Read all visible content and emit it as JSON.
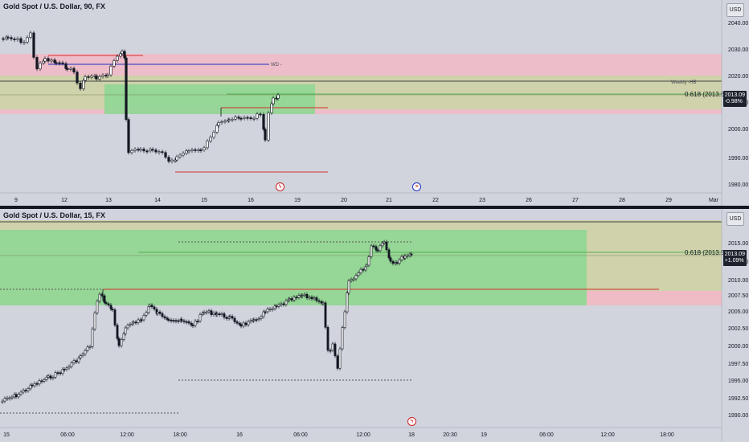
{
  "top_chart": {
    "title": "Gold Spot / U.S. Dollar, 90, FX",
    "currency": "USD",
    "price_badge": [
      "2013.09",
      "-0.98%"
    ],
    "fib_label": "0.618 (2013.52)",
    "weekly_label": "Weekly -HB",
    "wd_label": "WD -",
    "y_ticks": [
      "2040.00",
      "2030.00",
      "2020.00",
      "2010.00",
      "2000.00",
      "1990.00",
      "1980.00"
    ],
    "x_ticks": [
      "9",
      "12",
      "13",
      "14",
      "15",
      "16",
      "19",
      "20",
      "21",
      "22",
      "23",
      "26",
      "27",
      "28",
      "29",
      "Mar"
    ]
  },
  "bottom_chart": {
    "title": "Gold Spot / U.S. Dollar, 15, FX",
    "currency": "USD",
    "price_badge": [
      "2013.09",
      "+1.09%"
    ],
    "fib_label": "0.618 (2013.52)",
    "y_ticks": [
      "2015.00",
      "2012.50",
      "2010.00",
      "2007.50",
      "2005.00",
      "2002.50",
      "2000.00",
      "1997.50",
      "1995.00",
      "1992.50",
      "1990.00"
    ],
    "x_ticks": [
      "15",
      "06:00",
      "12:00",
      "18:00",
      "16",
      "06:00",
      "12:00",
      "18",
      "20:30",
      "19",
      "06:00",
      "12:00",
      "18:00"
    ]
  },
  "colors": {
    "background": "#d1d4dc",
    "bull_candle": "#ffffff",
    "bear_candle": "#131722",
    "supply_zone": "#f2b8c6",
    "demand_zone": "#8fd694",
    "premium_zone": "#cdd29a",
    "red_line": "#d32f2f",
    "blue_line": "#1f2fc0",
    "green_line": "#3aa33a"
  },
  "icons": [
    "lightning-icon",
    "us-flag-icon",
    "lightning-icon"
  ]
}
